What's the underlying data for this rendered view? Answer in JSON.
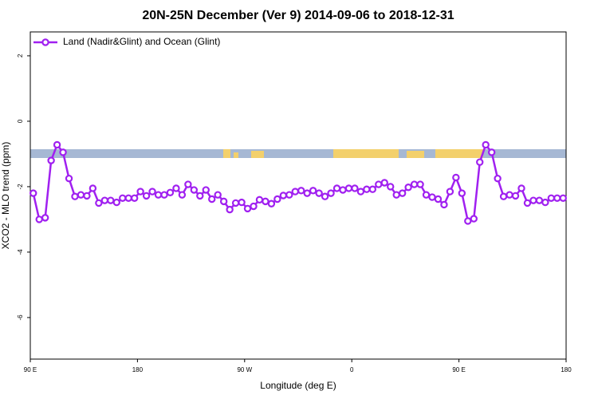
{
  "chart_data": {
    "type": "line",
    "title": "20N-25N December (Ver 9)   2014-09-06 to 2018-12-31",
    "xlabel": "Longitude (deg E)",
    "ylabel": "XCO2 - MLO trend (ppm)",
    "x": [
      92.5,
      97.5,
      102.5,
      107.5,
      112.5,
      117.5,
      122.5,
      127.5,
      132.5,
      137.5,
      142.5,
      147.5,
      152.5,
      157.5,
      162.5,
      167.5,
      172.5,
      177.5,
      182.5,
      187.5,
      192.5,
      197.5,
      202.5,
      207.5,
      212.5,
      217.5,
      222.5,
      227.5,
      232.5,
      237.5,
      242.5,
      247.5,
      252.5,
      257.5,
      262.5,
      267.5,
      272.5,
      277.5,
      282.5,
      287.5,
      292.5,
      297.5,
      302.5,
      307.5,
      312.5,
      317.5,
      322.5,
      327.5,
      332.5,
      337.5,
      342.5,
      347.5,
      352.5,
      357.5,
      362.5,
      367.5,
      372.5,
      377.5,
      382.5,
      387.5,
      392.5,
      397.5,
      402.5,
      407.5,
      412.5,
      417.5,
      422.5,
      427.5,
      432.5,
      437.5,
      442.5,
      447.5,
      452.5,
      457.5,
      462.5,
      467.5,
      472.5,
      477.5,
      482.5,
      487.5,
      492.5,
      497.5,
      502.5,
      507.5,
      512.5,
      517.5,
      522.5,
      527.5,
      532.5,
      537.5
    ],
    "series": [
      {
        "name": "Land (Nadir&Glint) and Ocean (Glint)",
        "color": "#a020f0",
        "values": [
          -2.2,
          -3.0,
          -2.95,
          -1.2,
          -0.72,
          -0.95,
          -1.75,
          -2.3,
          -2.25,
          -2.28,
          -2.05,
          -2.5,
          -2.42,
          -2.42,
          -2.48,
          -2.35,
          -2.35,
          -2.35,
          -2.15,
          -2.28,
          -2.15,
          -2.25,
          -2.25,
          -2.18,
          -2.05,
          -2.25,
          -1.93,
          -2.1,
          -2.28,
          -2.1,
          -2.38,
          -2.25,
          -2.45,
          -2.7,
          -2.5,
          -2.48,
          -2.67,
          -2.6,
          -2.4,
          -2.45,
          -2.52,
          -2.38,
          -2.27,
          -2.25,
          -2.15,
          -2.12,
          -2.2,
          -2.12,
          -2.2,
          -2.3,
          -2.2,
          -2.05,
          -2.1,
          -2.05,
          -2.05,
          -2.15,
          -2.08,
          -2.08,
          -1.93,
          -1.88,
          -2.0,
          -2.25,
          -2.2,
          -2.02,
          -1.93,
          -1.93,
          -2.25,
          -2.32,
          -2.38,
          -2.55,
          -2.15,
          -1.72,
          -2.2,
          -3.05,
          -2.98,
          -1.25,
          -0.72,
          -0.95,
          -1.75,
          -2.3,
          -2.25,
          -2.28,
          -2.05,
          -2.5,
          -2.42,
          -2.42,
          -2.48,
          -2.35,
          -2.35,
          -2.35
        ]
      }
    ],
    "xlim": [
      90,
      540
    ],
    "xticks": [
      {
        "value": 90,
        "label": "90 E"
      },
      {
        "value": 180,
        "label": "180"
      },
      {
        "value": 270,
        "label": "90 W"
      },
      {
        "value": 360,
        "label": "0"
      },
      {
        "value": 450,
        "label": "90 E"
      },
      {
        "value": 540,
        "label": "180"
      }
    ],
    "ylim": [
      -7.27,
      2.73
    ],
    "yticks": [
      2,
      0,
      -2,
      -4,
      -6
    ],
    "legend": "topleft"
  }
}
